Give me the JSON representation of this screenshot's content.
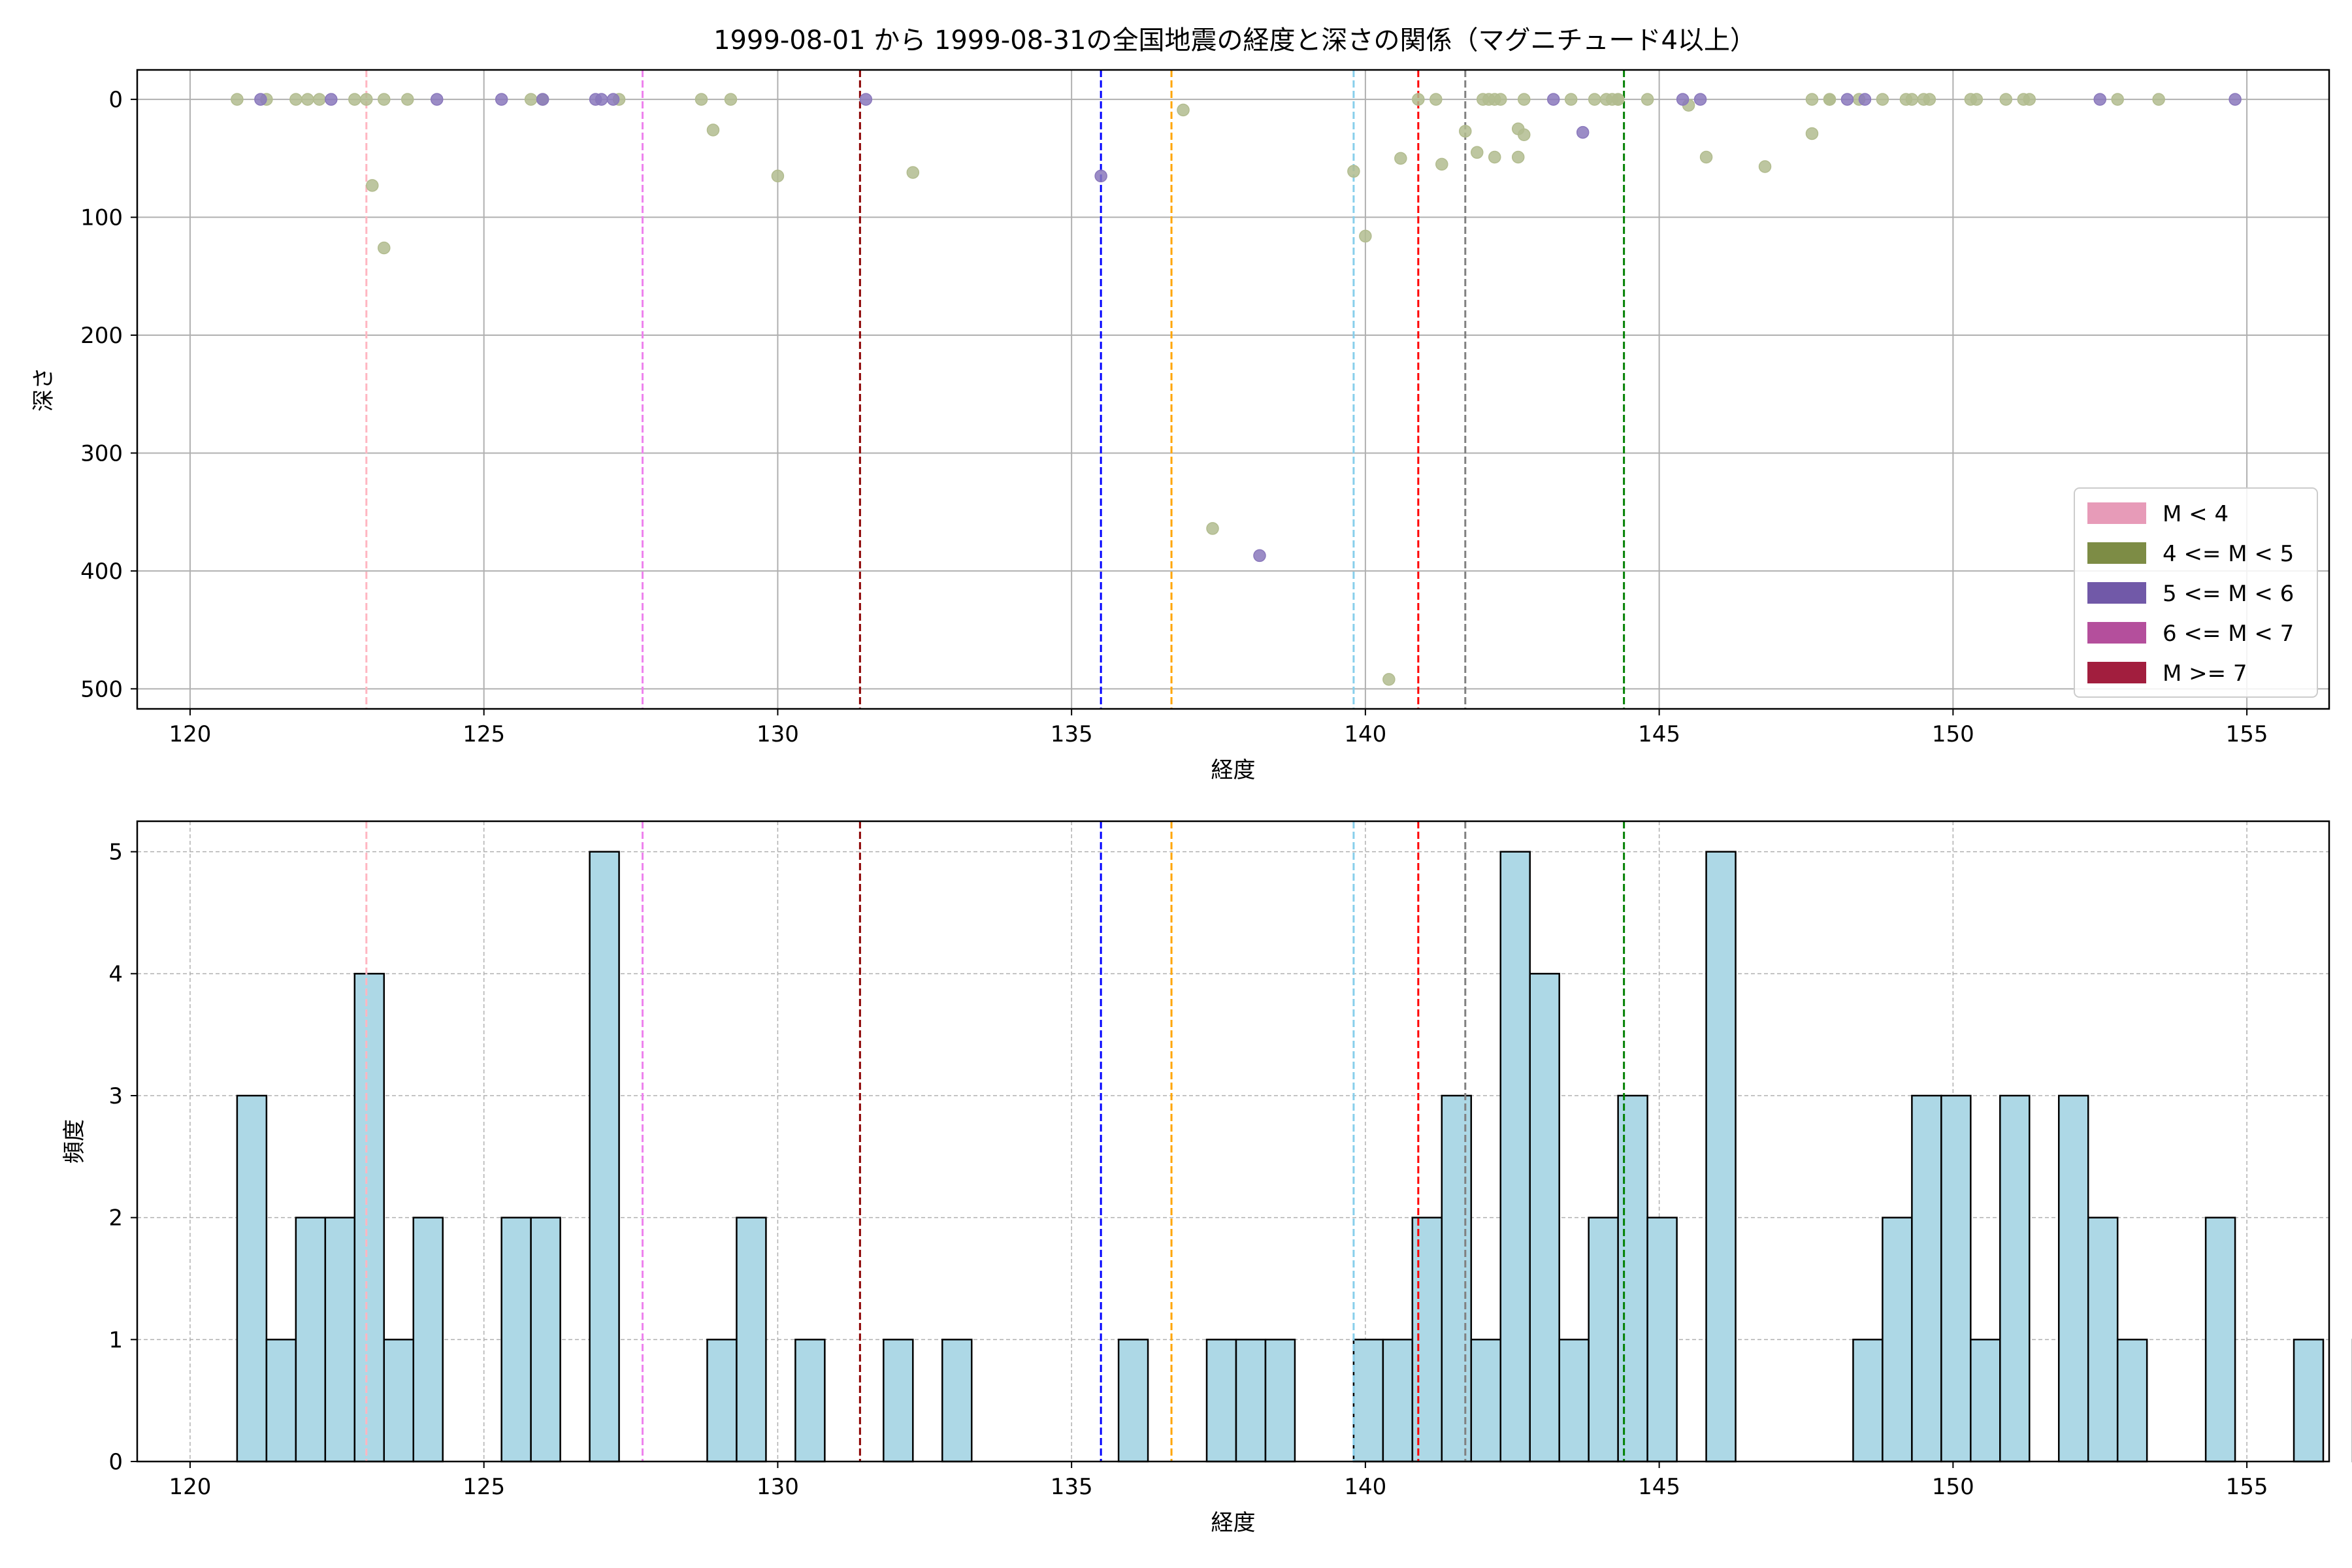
{
  "figure": {
    "title": "1999-08-01 から 1999-08-31の全国地震の経度と深さの関係（マグニチュード4以上）"
  },
  "chart_data": [
    {
      "type": "scatter",
      "xlabel": "経度",
      "ylabel": "深さ",
      "xlim": [
        119.1,
        156.4
      ],
      "ylim": [
        517,
        -25
      ],
      "y_inverted": true,
      "xticks": [
        120,
        125,
        130,
        135,
        140,
        145,
        150,
        155
      ],
      "yticks": [
        0,
        100,
        200,
        300,
        400,
        500
      ],
      "grid": true,
      "legend": {
        "placement": "lower-right",
        "entries": [
          {
            "label": "M < 4",
            "color": "#e79bb8"
          },
          {
            "label": "4 <= M < 5",
            "color": "#7d8c45"
          },
          {
            "label": "5 <= M < 6",
            "color": "#7159a8"
          },
          {
            "label": "6 <= M < 7",
            "color": "#b44f9c"
          },
          {
            "label": "M >= 7",
            "color": "#a21e3e"
          }
        ]
      },
      "point_colors": {
        "4 <= M < 5": "#b2bc8f",
        "5 <= M < 6": "#8a78bc"
      },
      "series": [
        {
          "magnitude_class": "4 <= M < 5",
          "points": [
            [
              120.8,
              0
            ],
            [
              121.3,
              0
            ],
            [
              121.8,
              0
            ],
            [
              122.0,
              0
            ],
            [
              122.2,
              0
            ],
            [
              122.8,
              0
            ],
            [
              123.0,
              0
            ],
            [
              123.3,
              0
            ],
            [
              123.7,
              0
            ],
            [
              123.1,
              73
            ],
            [
              123.3,
              126
            ],
            [
              125.8,
              0
            ],
            [
              126.0,
              0
            ],
            [
              127.3,
              0
            ],
            [
              128.7,
              0
            ],
            [
              129.2,
              0
            ],
            [
              128.9,
              26
            ],
            [
              130.0,
              65
            ],
            [
              132.3,
              62
            ],
            [
              136.9,
              9
            ],
            [
              137.4,
              364
            ],
            [
              139.8,
              61
            ],
            [
              140.0,
              116
            ],
            [
              140.4,
              492
            ],
            [
              140.6,
              50
            ],
            [
              140.9,
              0
            ],
            [
              141.2,
              0
            ],
            [
              141.3,
              55
            ],
            [
              141.7,
              27
            ],
            [
              142.0,
              0
            ],
            [
              142.1,
              0
            ],
            [
              142.2,
              0
            ],
            [
              142.3,
              0
            ],
            [
              141.9,
              45
            ],
            [
              142.2,
              49
            ],
            [
              142.7,
              0
            ],
            [
              142.6,
              25
            ],
            [
              142.7,
              30
            ],
            [
              142.6,
              49
            ],
            [
              143.5,
              0
            ],
            [
              143.9,
              0
            ],
            [
              144.1,
              0
            ],
            [
              144.2,
              0
            ],
            [
              144.3,
              0
            ],
            [
              144.3,
              0
            ],
            [
              144.8,
              0
            ],
            [
              145.5,
              5
            ],
            [
              145.8,
              49
            ],
            [
              146.8,
              57
            ],
            [
              147.6,
              0
            ],
            [
              147.6,
              29
            ],
            [
              147.9,
              0
            ],
            [
              147.9,
              0
            ],
            [
              148.4,
              0
            ],
            [
              148.8,
              0
            ],
            [
              149.2,
              0
            ],
            [
              149.3,
              0
            ],
            [
              149.5,
              0
            ],
            [
              149.6,
              0
            ],
            [
              150.3,
              0
            ],
            [
              150.4,
              0
            ],
            [
              150.9,
              0
            ],
            [
              151.2,
              0
            ],
            [
              151.3,
              0
            ],
            [
              152.8,
              0
            ],
            [
              153.5,
              0
            ]
          ]
        },
        {
          "magnitude_class": "5 <= M < 6",
          "points": [
            [
              121.2,
              0
            ],
            [
              122.4,
              0
            ],
            [
              124.2,
              0
            ],
            [
              125.3,
              0
            ],
            [
              126.0,
              0
            ],
            [
              126.9,
              0
            ],
            [
              127.0,
              0
            ],
            [
              127.2,
              0
            ],
            [
              131.5,
              0
            ],
            [
              135.5,
              65
            ],
            [
              138.2,
              387
            ],
            [
              143.2,
              0
            ],
            [
              143.7,
              28
            ],
            [
              145.4,
              0
            ],
            [
              145.7,
              0
            ],
            [
              148.2,
              0
            ],
            [
              148.5,
              0
            ],
            [
              152.5,
              0
            ],
            [
              154.8,
              0
            ]
          ]
        }
      ],
      "reference_lines": [
        {
          "x": 123.0,
          "color": "#ffb6c1"
        },
        {
          "x": 127.7,
          "color": "#ee82ee"
        },
        {
          "x": 131.4,
          "color": "#8b0000"
        },
        {
          "x": 135.5,
          "color": "#0000ff"
        },
        {
          "x": 136.7,
          "color": "#ffa500"
        },
        {
          "x": 139.8,
          "color": "#87ceeb"
        },
        {
          "x": 140.9,
          "color": "#ff0000"
        },
        {
          "x": 141.7,
          "color": "#808080"
        },
        {
          "x": 144.4,
          "color": "#008000"
        }
      ]
    },
    {
      "type": "bar",
      "subtype": "histogram",
      "xlabel": "経度",
      "ylabel": "頻度",
      "xlim": [
        119.1,
        156.4
      ],
      "ylim": [
        0,
        5.25
      ],
      "xticks": [
        120,
        125,
        130,
        135,
        140,
        145,
        150,
        155
      ],
      "yticks": [
        0,
        1,
        2,
        3,
        4,
        5
      ],
      "grid": true,
      "bar_color": "#add8e6",
      "edge_color": "#000000",
      "bin_start": 120.8,
      "bin_width": 0.5,
      "counts": [
        3,
        1,
        2,
        2,
        4,
        1,
        2,
        0,
        0,
        2,
        2,
        0,
        5,
        0,
        0,
        0,
        1,
        2,
        0,
        1,
        0,
        0,
        1,
        0,
        1,
        0,
        0,
        0,
        0,
        0,
        1,
        0,
        0,
        1,
        1,
        1,
        0,
        0,
        1,
        1,
        2,
        3,
        1,
        5,
        4,
        1,
        2,
        3,
        2,
        0,
        5,
        0,
        0,
        0,
        0,
        1,
        2,
        3,
        3,
        1,
        3,
        0,
        3,
        2,
        1,
        0,
        0,
        2,
        0,
        0,
        1,
        0,
        1
      ],
      "reference_lines": [
        {
          "x": 123.0,
          "color": "#ffb6c1"
        },
        {
          "x": 127.7,
          "color": "#ee82ee"
        },
        {
          "x": 131.4,
          "color": "#8b0000"
        },
        {
          "x": 135.5,
          "color": "#0000ff"
        },
        {
          "x": 136.7,
          "color": "#ffa500"
        },
        {
          "x": 139.8,
          "color": "#87ceeb"
        },
        {
          "x": 140.9,
          "color": "#ff0000"
        },
        {
          "x": 141.7,
          "color": "#808080"
        },
        {
          "x": 144.4,
          "color": "#008000"
        }
      ]
    }
  ]
}
